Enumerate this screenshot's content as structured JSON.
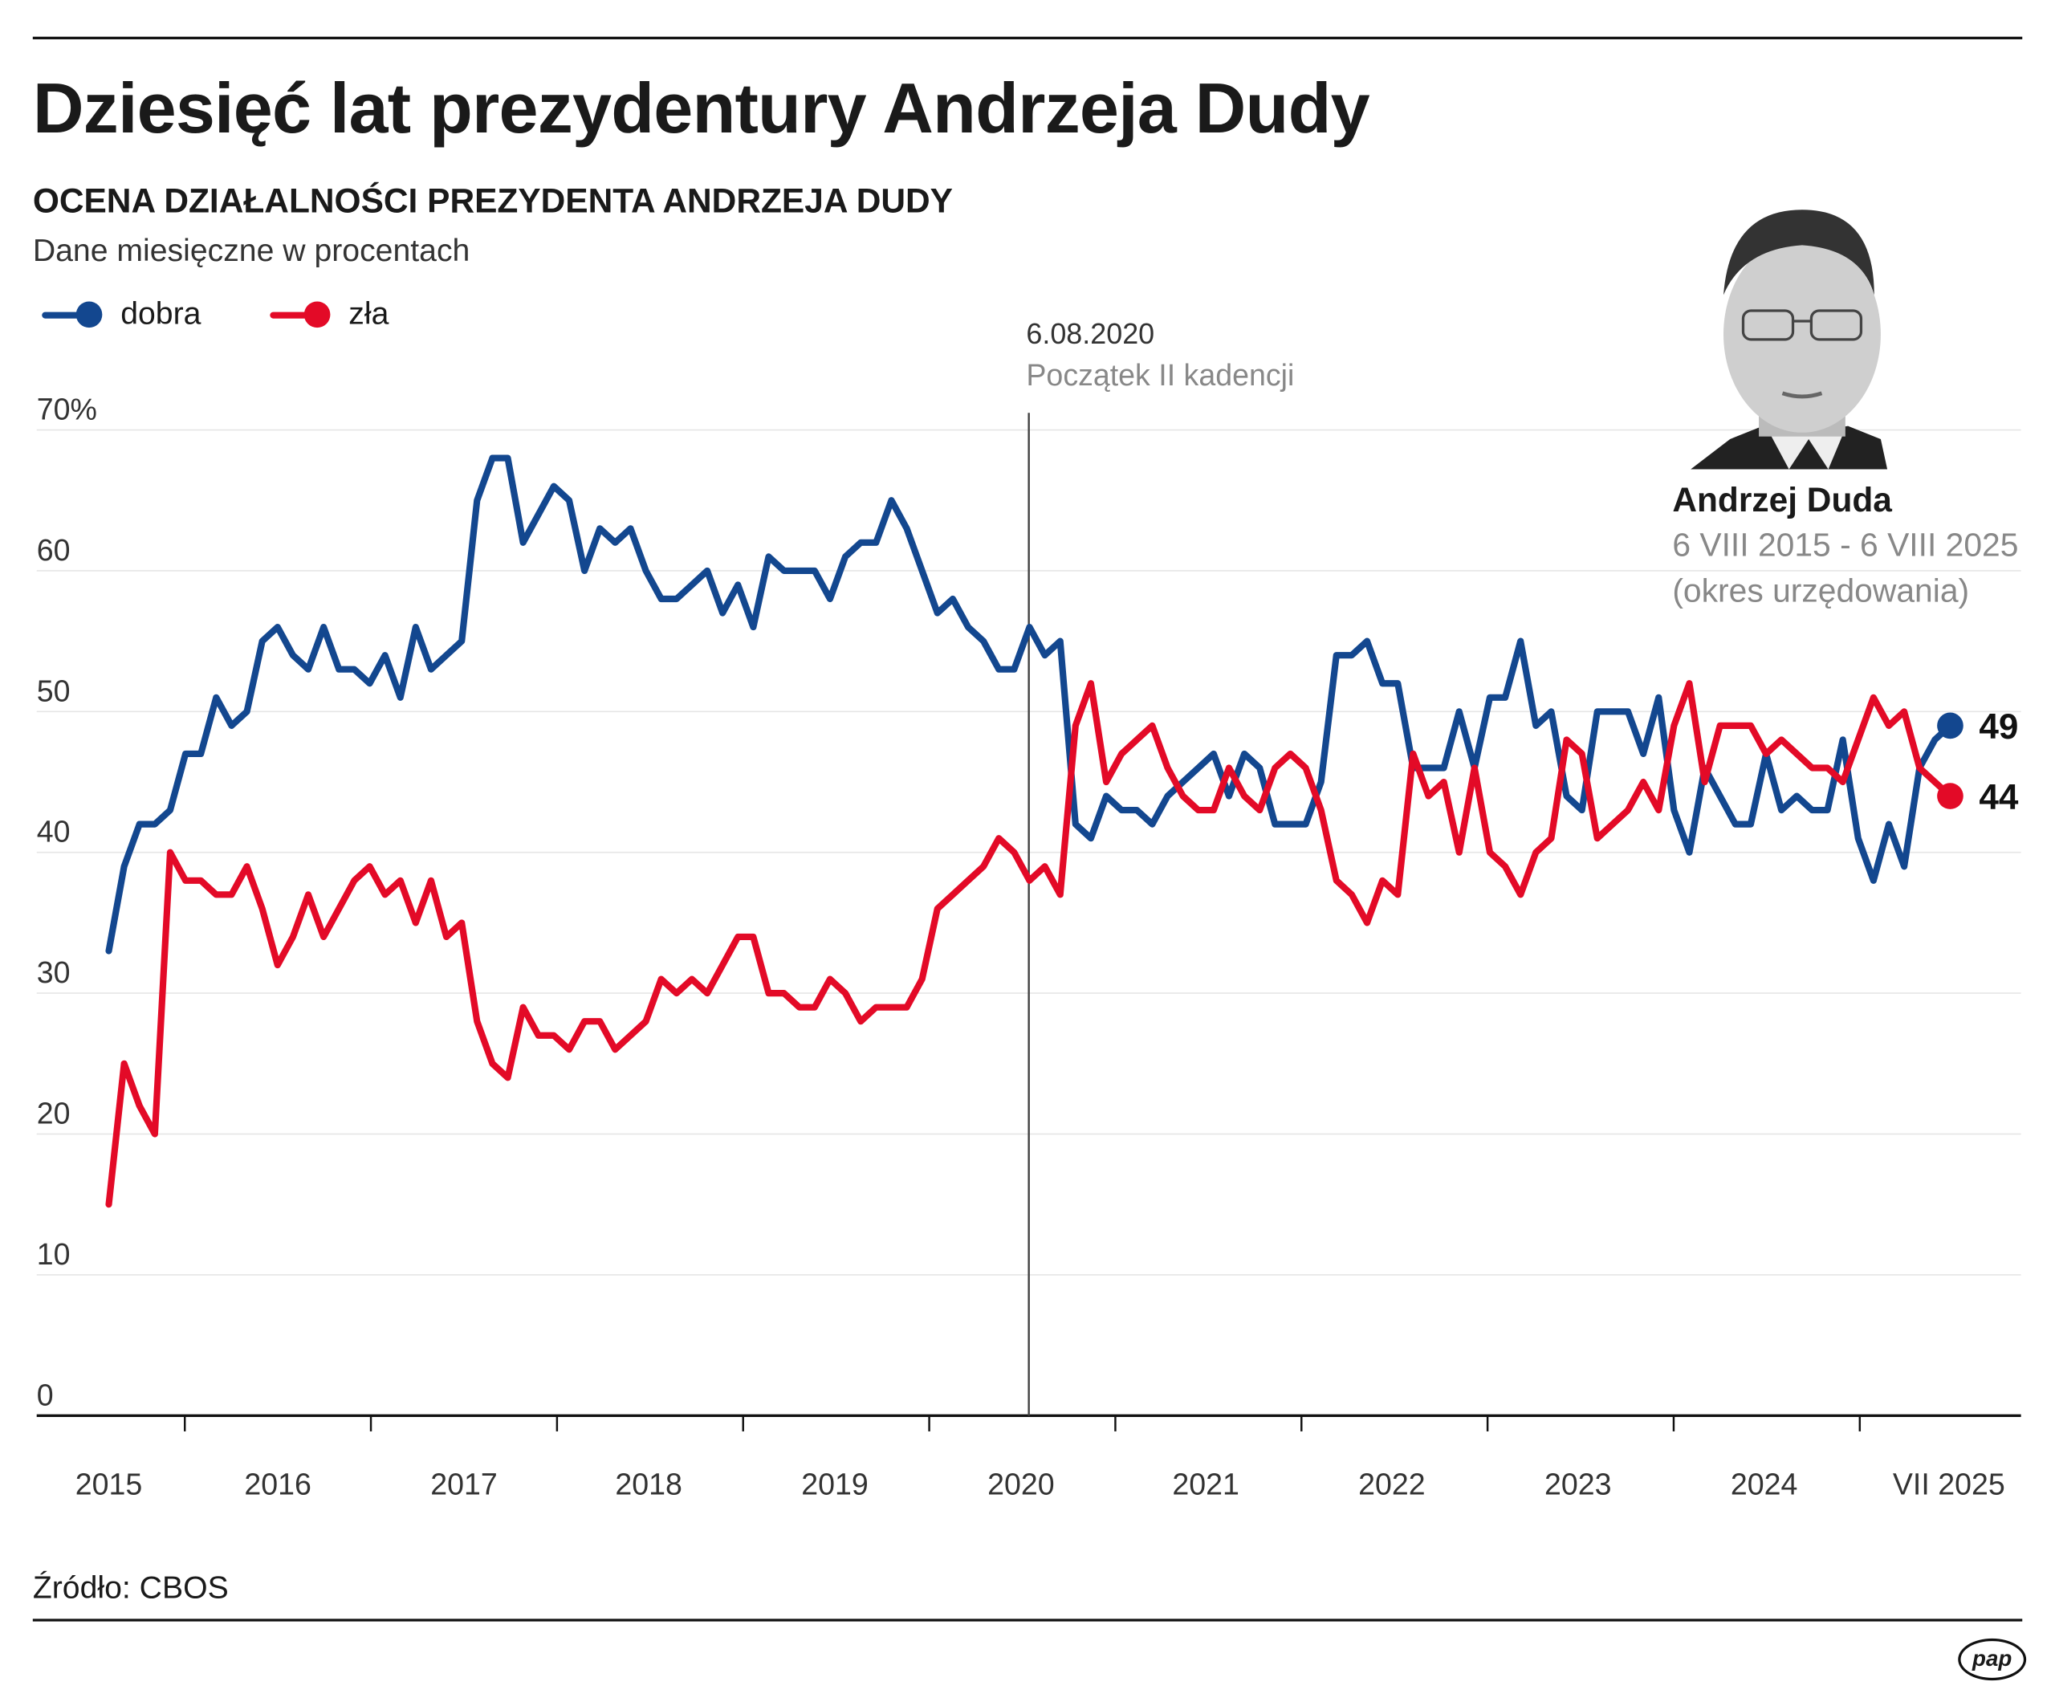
{
  "title": "Dziesięć lat prezydentury Andrzeja Dudy",
  "subtitle": "OCENA DZIAŁALNOŚCI PREZYDENTA ANDRZEJA DUDY",
  "units": "Dane miesięczne w procentach",
  "source": "Źródło: CBOS",
  "logo": "pap",
  "person": {
    "name": "Andrzej Duda",
    "term": "6 VIII 2015 - 6 VIII 2025",
    "note": "(okres urzędowania)"
  },
  "colors": {
    "dobra": "#13478f",
    "zla": "#e30a27"
  },
  "chart_data": {
    "type": "line",
    "ylim": [
      0,
      70
    ],
    "y_ticks": [
      "0",
      "10",
      "20",
      "30",
      "40",
      "50",
      "60",
      "70%"
    ],
    "x_tick_labels": [
      "2015",
      "2016",
      "2017",
      "2018",
      "2019",
      "2020",
      "2021",
      "2022",
      "2023",
      "2024",
      "VII 2025"
    ],
    "grid": true,
    "legend": "top-left",
    "annotation": {
      "date": "6.08.2020",
      "text": "Początek II kadencji"
    },
    "series": [
      {
        "name": "dobra",
        "end_label": "49",
        "values": [
          33,
          39,
          42,
          42,
          43,
          47,
          47,
          51,
          49,
          50,
          55,
          56,
          54,
          53,
          56,
          53,
          53,
          52,
          54,
          51,
          56,
          53,
          54,
          55,
          65,
          68,
          68,
          62,
          64,
          66,
          65,
          60,
          63,
          62,
          63,
          60,
          58,
          58,
          59,
          60,
          57,
          59,
          56,
          61,
          60,
          60,
          60,
          58,
          61,
          62,
          62,
          65,
          63,
          60,
          57,
          58,
          56,
          55,
          53,
          53,
          56,
          54,
          55,
          42,
          41,
          44,
          43,
          43,
          42,
          44,
          45,
          46,
          47,
          44,
          47,
          46,
          42,
          42,
          42,
          45,
          54,
          54,
          55,
          52,
          52,
          46,
          46,
          46,
          50,
          46,
          51,
          51,
          55,
          49,
          50,
          44,
          43,
          50,
          50,
          50,
          47,
          51,
          43,
          40,
          46,
          44,
          42,
          42,
          47,
          43,
          44,
          43,
          43,
          48,
          41,
          38,
          42,
          39,
          46,
          48,
          49
        ]
      },
      {
        "name": "zła",
        "end_label": "44",
        "values": [
          15,
          25,
          22,
          20,
          40,
          38,
          38,
          37,
          37,
          39,
          36,
          32,
          34,
          37,
          34,
          36,
          38,
          39,
          37,
          38,
          35,
          38,
          34,
          35,
          28,
          25,
          24,
          29,
          27,
          27,
          26,
          28,
          28,
          26,
          27,
          28,
          31,
          30,
          31,
          30,
          32,
          34,
          34,
          30,
          30,
          29,
          29,
          31,
          30,
          28,
          29,
          29,
          29,
          31,
          36,
          37,
          38,
          39,
          41,
          40,
          38,
          39,
          37,
          49,
          52,
          45,
          47,
          48,
          49,
          46,
          44,
          43,
          43,
          46,
          44,
          43,
          46,
          47,
          46,
          43,
          38,
          37,
          35,
          38,
          37,
          47,
          44,
          45,
          40,
          46,
          40,
          39,
          37,
          40,
          41,
          48,
          47,
          41,
          42,
          43,
          45,
          43,
          49,
          52,
          45,
          49,
          49,
          49,
          47,
          48,
          47,
          46,
          46,
          45,
          48,
          51,
          49,
          50,
          46,
          45,
          44
        ]
      }
    ]
  }
}
